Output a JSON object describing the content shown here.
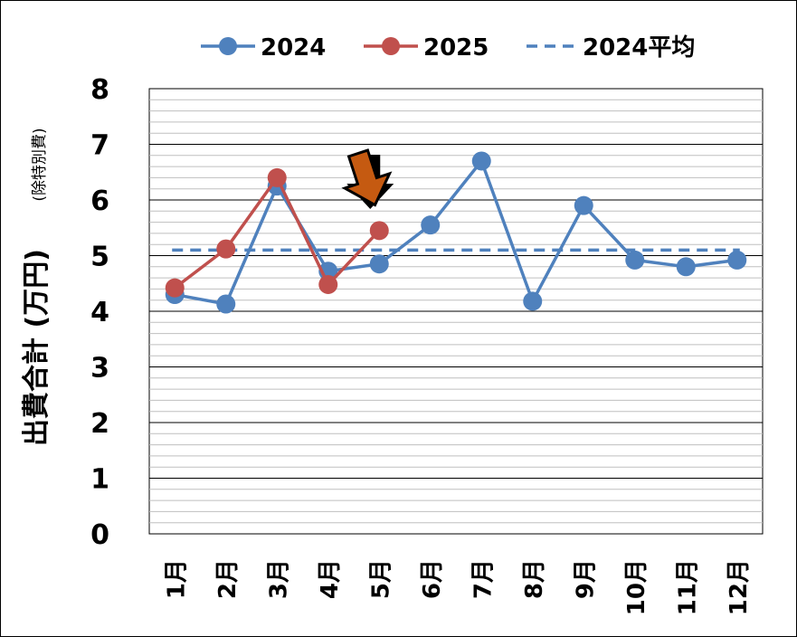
{
  "chart_data": {
    "type": "line",
    "categories": [
      "1月",
      "2月",
      "3月",
      "4月",
      "5月",
      "6月",
      "7月",
      "8月",
      "9月",
      "10月",
      "11月",
      "12月"
    ],
    "series": [
      {
        "name": "2024",
        "color": "#4f81bd",
        "values": [
          4.3,
          4.13,
          6.25,
          4.72,
          4.85,
          5.55,
          6.7,
          4.18,
          5.9,
          4.92,
          4.8,
          4.92
        ]
      },
      {
        "name": "2025",
        "color": "#c0504d",
        "values": [
          4.42,
          5.12,
          6.4,
          4.48,
          5.45,
          null,
          null,
          null,
          null,
          null,
          null,
          null
        ]
      }
    ],
    "reference_line": {
      "name": "2024平均",
      "value": 5.1,
      "style": "dashed",
      "color": "#4f81bd"
    },
    "ylabel": "出費合計 (万円)",
    "ylabel_note": "(除特別費)",
    "ylim": [
      0,
      8
    ],
    "yticks": [
      "0",
      "1",
      "2",
      "3",
      "4",
      "5",
      "6",
      "7",
      "8"
    ],
    "grid": true,
    "legend_position": "top",
    "annotation": {
      "type": "arrow-down",
      "category": "5月",
      "color": "#c55a11",
      "outline": "#000000"
    }
  }
}
